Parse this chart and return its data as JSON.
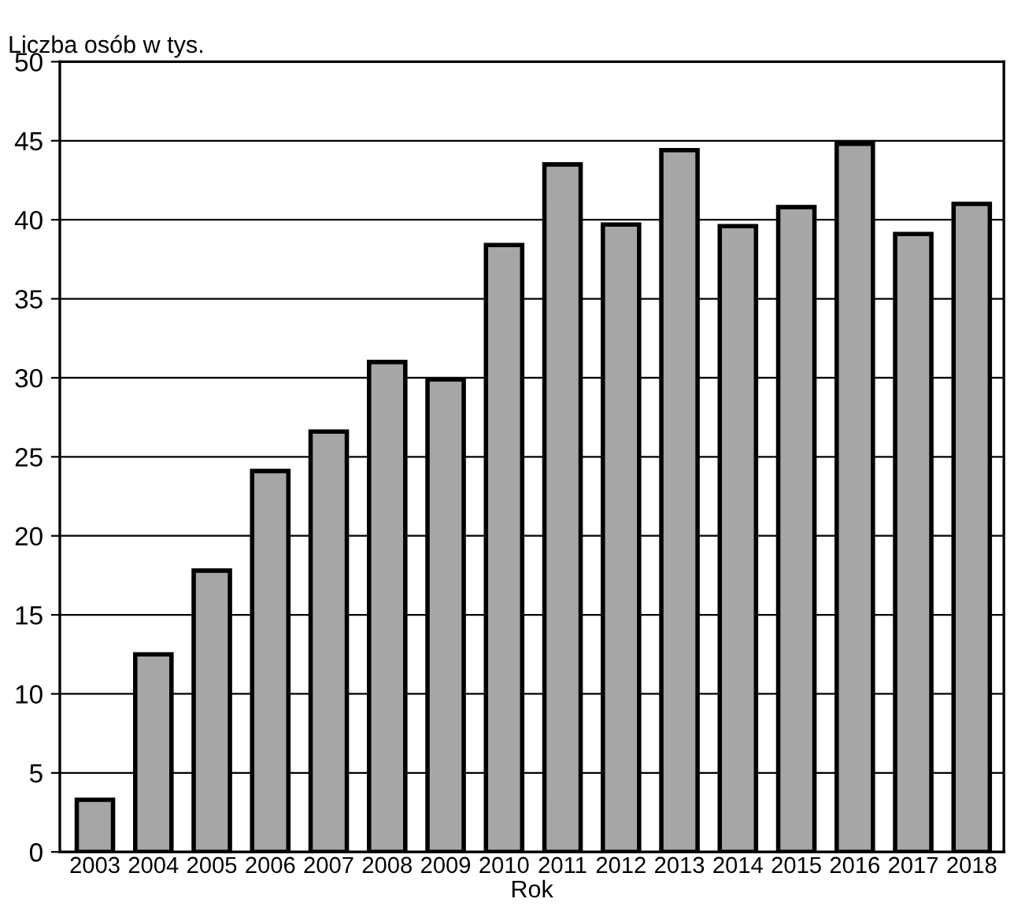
{
  "chart_data": {
    "type": "bar",
    "ylabel": "Liczba osób w tys.",
    "xlabel": "Rok",
    "categories": [
      "2003",
      "2004",
      "2005",
      "2006",
      "2007",
      "2008",
      "2009",
      "2010",
      "2011",
      "2012",
      "2013",
      "2014",
      "2015",
      "2016",
      "2017",
      "2018"
    ],
    "values": [
      3.3,
      12.5,
      17.8,
      24.1,
      26.6,
      31.0,
      29.9,
      38.4,
      43.5,
      39.7,
      44.4,
      39.6,
      40.8,
      44.8,
      39.1,
      41.0
    ],
    "color": "#a6a6a6",
    "ylim": [
      0,
      50
    ],
    "yticks": [
      0,
      5,
      10,
      15,
      20,
      25,
      30,
      35,
      40,
      45,
      50
    ],
    "grid": "y"
  }
}
